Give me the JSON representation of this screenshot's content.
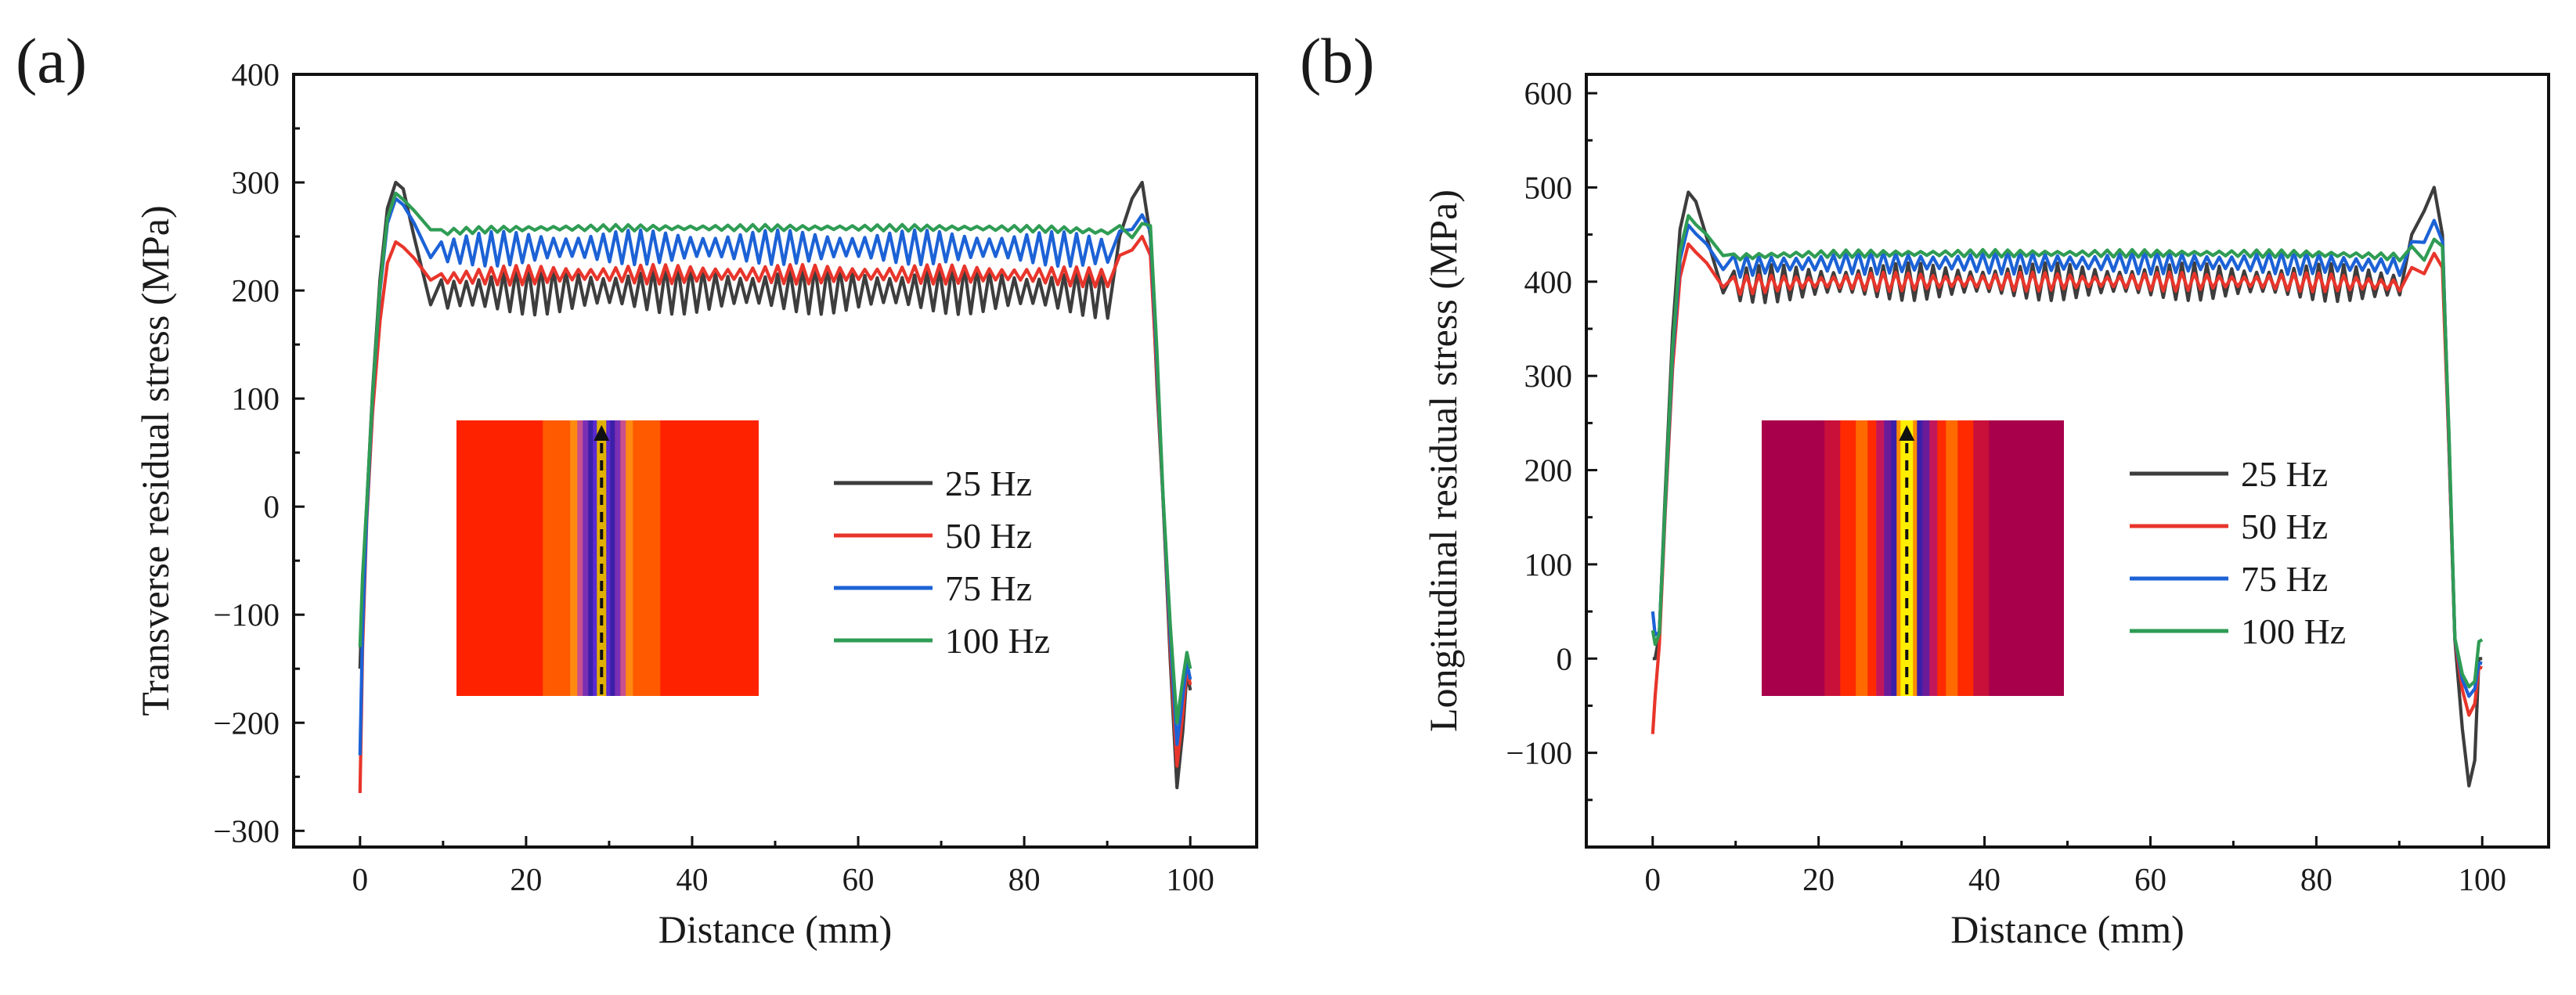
{
  "panels": [
    {
      "letter": "(a)",
      "inset_style": "transverse"
    },
    {
      "letter": "(b)",
      "inset_style": "longitudinal"
    }
  ],
  "colors": {
    "25 Hz": "#3d3d3d",
    "50 Hz": "#e8352b",
    "75 Hz": "#1c62d6",
    "100 Hz": "#2f9c54"
  },
  "chart_data": [
    {
      "type": "line",
      "title": "",
      "xlabel": "Distance (mm)",
      "ylabel": "Transverse residual stress (MPa)",
      "xlim": [
        -8,
        108
      ],
      "ylim": [
        -315,
        400
      ],
      "xticks": [
        0,
        20,
        40,
        60,
        80,
        100
      ],
      "yticks": [
        -300,
        -200,
        -100,
        0,
        100,
        200,
        300,
        400
      ],
      "ytick_labels": [
        "−300",
        "−200",
        "−100",
        "0",
        "100",
        "200",
        "300",
        "400"
      ],
      "legend_position": "center-right",
      "series": [
        {
          "name": "25 Hz",
          "start": -150,
          "rise_peak": 300,
          "plateau_base": 200,
          "plateau_amp": 22,
          "end_peak": 300,
          "end_dip": -260,
          "end_value": -170
        },
        {
          "name": "50 Hz",
          "start": -265,
          "rise_peak": 245,
          "plateau_base": 215,
          "plateau_amp": 9,
          "end_peak": 250,
          "end_dip": -240,
          "end_value": -165
        },
        {
          "name": "75 Hz",
          "start": -230,
          "rise_peak": 285,
          "plateau_base": 240,
          "plateau_amp": 16,
          "end_peak": 270,
          "end_dip": -220,
          "end_value": -160
        },
        {
          "name": "100 Hz",
          "start": -130,
          "rise_peak": 290,
          "plateau_base": 258,
          "plateau_amp": 3,
          "end_peak": 262,
          "end_dip": -200,
          "end_value": -150
        }
      ]
    },
    {
      "type": "line",
      "title": "",
      "xlabel": "Distance (mm)",
      "ylabel": "Longitudinal residual stress (MPa)",
      "xlim": [
        -8,
        108
      ],
      "ylim": [
        -200,
        620
      ],
      "xticks": [
        0,
        20,
        40,
        60,
        80,
        100
      ],
      "yticks": [
        -100,
        0,
        100,
        200,
        300,
        400,
        500,
        600
      ],
      "ytick_labels": [
        "−100",
        "0",
        "100",
        "200",
        "300",
        "400",
        "500",
        "600"
      ],
      "legend_position": "center-right",
      "series": [
        {
          "name": "25 Hz",
          "start": 0,
          "rise_peak": 495,
          "plateau_base": 400,
          "plateau_amp": 20,
          "end_peak": 500,
          "end_dip": -135,
          "end_value": 0
        },
        {
          "name": "50 Hz",
          "start": -80,
          "rise_peak": 440,
          "plateau_base": 400,
          "plateau_amp": 10,
          "end_peak": 430,
          "end_dip": -60,
          "end_value": -10
        },
        {
          "name": "75 Hz",
          "start": 50,
          "rise_peak": 460,
          "plateau_base": 420,
          "plateau_amp": 12,
          "end_peak": 465,
          "end_dip": -40,
          "end_value": -5
        },
        {
          "name": "100 Hz",
          "start": 30,
          "rise_peak": 470,
          "plateau_base": 430,
          "plateau_amp": 4,
          "end_peak": 445,
          "end_dip": -30,
          "end_value": 20
        }
      ]
    }
  ]
}
